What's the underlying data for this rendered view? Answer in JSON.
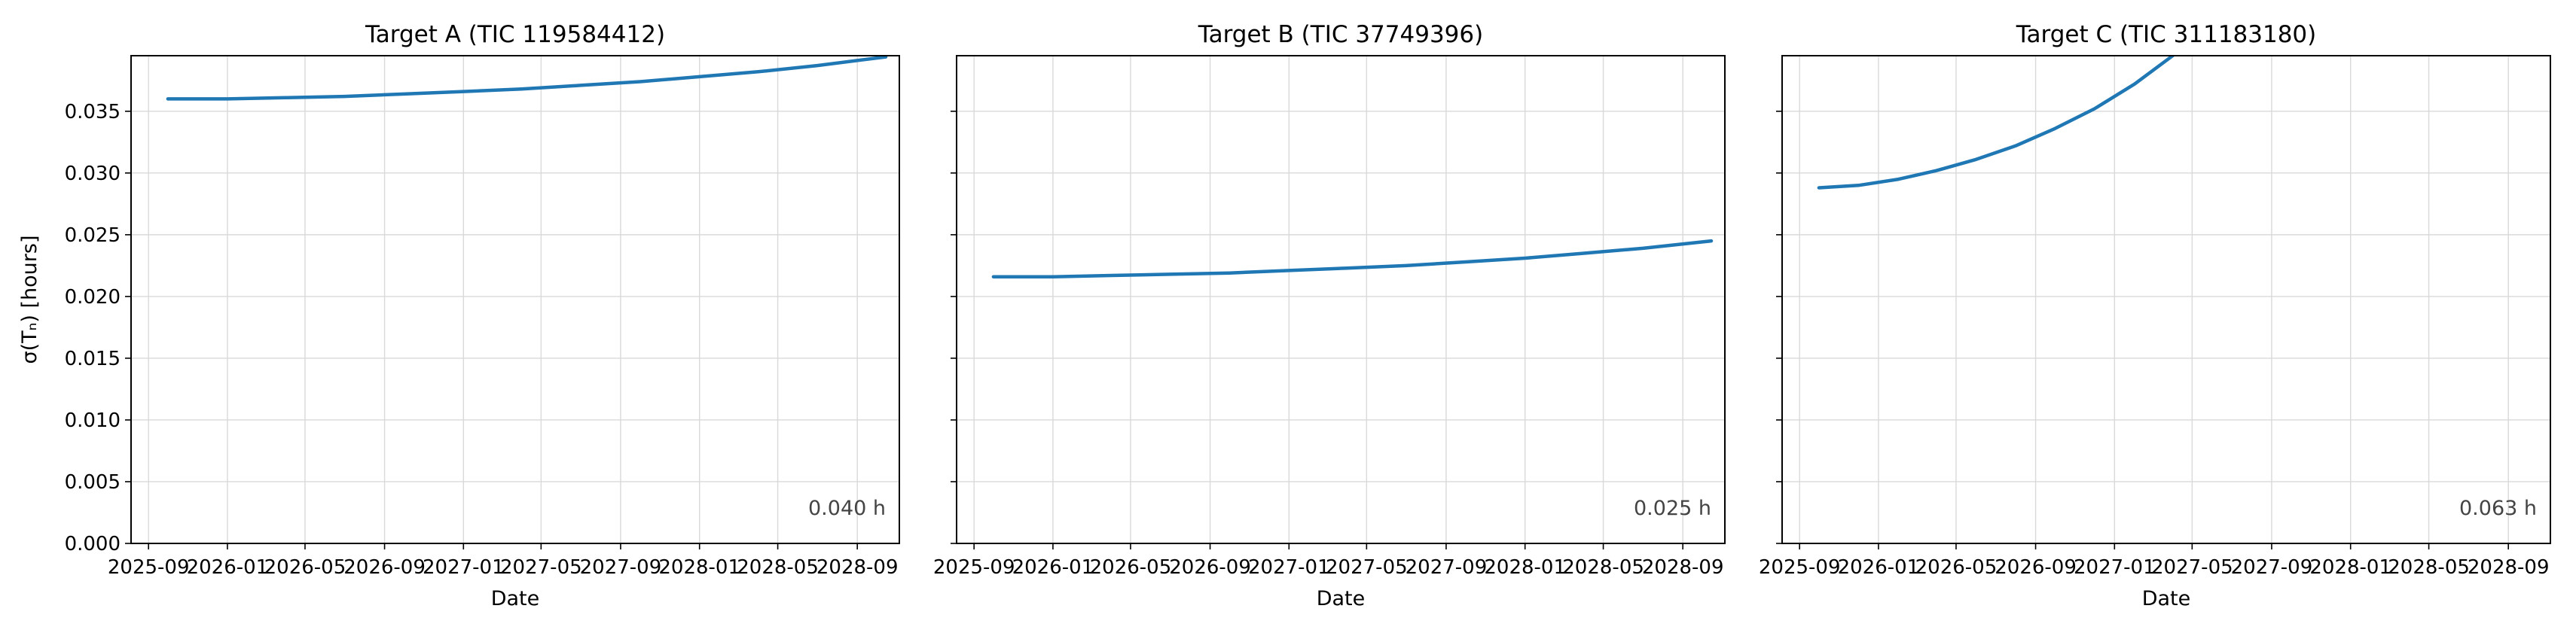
{
  "chart_data": [
    {
      "type": "line",
      "title": "Target A (TIC 119584412)",
      "xlabel": "Date",
      "ylabel": "σ(Tₙ)  [hours]",
      "annotation": "0.040 h",
      "color": "#1f77b4",
      "xlim": [
        "2025-08-05",
        "2028-11-05"
      ],
      "ylim": [
        0.0,
        0.0395
      ],
      "x_ticks": [
        "2025-09",
        "2026-01",
        "2026-05",
        "2026-09",
        "2027-01",
        "2027-05",
        "2027-09",
        "2028-01",
        "2028-05",
        "2028-09"
      ],
      "y_ticks": [
        "0.000",
        "0.005",
        "0.010",
        "0.015",
        "0.020",
        "0.025",
        "0.030",
        "0.035"
      ],
      "series": [
        {
          "x": [
            "2025-10-01",
            "2026-01-01",
            "2026-04-01",
            "2026-07-01",
            "2026-10-01",
            "2027-01-01",
            "2027-04-01",
            "2027-07-01",
            "2027-10-01",
            "2028-01-01",
            "2028-04-01",
            "2028-07-01",
            "2028-10-15"
          ],
          "y": [
            0.036,
            0.036,
            0.0361,
            0.0362,
            0.0364,
            0.0366,
            0.0368,
            0.0371,
            0.0374,
            0.0378,
            0.0382,
            0.0387,
            0.0394
          ]
        }
      ]
    },
    {
      "type": "line",
      "title": "Target B (TIC 37749396)",
      "xlabel": "Date",
      "annotation": "0.025 h",
      "color": "#1f77b4",
      "xlim": [
        "2025-08-05",
        "2028-11-05"
      ],
      "ylim": [
        0.0,
        0.0395
      ],
      "x_ticks": [
        "2025-09",
        "2026-01",
        "2026-05",
        "2026-09",
        "2027-01",
        "2027-05",
        "2027-09",
        "2028-01",
        "2028-05",
        "2028-09"
      ],
      "y_ticks": [],
      "series": [
        {
          "x": [
            "2025-10-01",
            "2026-01-01",
            "2026-04-01",
            "2026-07-01",
            "2026-10-01",
            "2027-01-01",
            "2027-04-01",
            "2027-07-01",
            "2027-10-01",
            "2028-01-01",
            "2028-04-01",
            "2028-07-01",
            "2028-10-15"
          ],
          "y": [
            0.0216,
            0.0216,
            0.0217,
            0.0218,
            0.0219,
            0.0221,
            0.0223,
            0.0225,
            0.0228,
            0.0231,
            0.0235,
            0.0239,
            0.0245
          ]
        }
      ]
    },
    {
      "type": "line",
      "title": "Target C (TIC 311183180)",
      "xlabel": "Date",
      "annotation": "0.063 h",
      "color": "#1f77b4",
      "xlim": [
        "2025-08-05",
        "2028-11-05"
      ],
      "ylim": [
        0.0,
        0.0395
      ],
      "x_ticks": [
        "2025-09",
        "2026-01",
        "2026-05",
        "2026-09",
        "2027-01",
        "2027-05",
        "2027-09",
        "2028-01",
        "2028-05",
        "2028-09"
      ],
      "y_ticks": [],
      "series": [
        {
          "x": [
            "2025-10-01",
            "2025-12-01",
            "2026-02-01",
            "2026-04-01",
            "2026-06-01",
            "2026-08-01",
            "2026-10-01",
            "2026-12-01",
            "2027-02-01",
            "2027-04-01"
          ],
          "y": [
            0.0288,
            0.029,
            0.0295,
            0.0302,
            0.0311,
            0.0322,
            0.0336,
            0.0352,
            0.0372,
            0.0395
          ]
        }
      ]
    }
  ]
}
